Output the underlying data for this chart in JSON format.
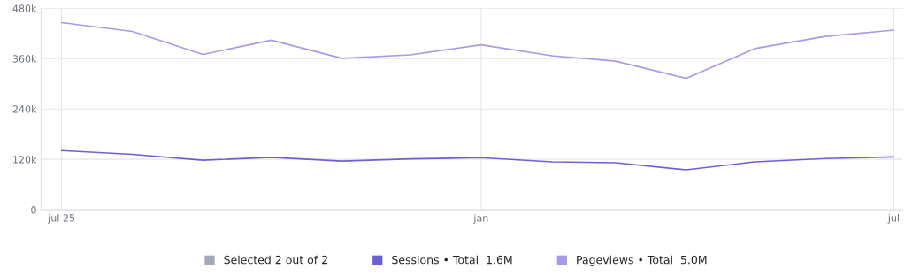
{
  "chart_data": {
    "type": "line",
    "x": [
      "2025-07",
      "2025-08",
      "2025-09",
      "2025-10",
      "2025-11",
      "2025-12",
      "2026-01",
      "2026-02",
      "2026-03",
      "2026-04",
      "2026-05",
      "2026-06",
      "2026-07"
    ],
    "series": [
      {
        "name": "Sessions • Total  1.6M",
        "color": "#6c60d6",
        "values": [
          141,
          132,
          118,
          125,
          116,
          121,
          124,
          114,
          112,
          95,
          114,
          122,
          126
        ]
      },
      {
        "name": "Pageviews • Total  5.0M",
        "color": "#a49ce6",
        "values": [
          446,
          425,
          370,
          404,
          361,
          369,
          393,
          367,
          354,
          313,
          384,
          413,
          428
        ]
      }
    ],
    "xlim": [
      "2025-06-22",
      "2026-07-05"
    ],
    "xticks": [
      {
        "value": "2025-07",
        "label": "jul 25"
      },
      {
        "value": "2026-01",
        "label": "jan"
      },
      {
        "value": "2026-07",
        "label": "jul"
      }
    ],
    "ylim": [
      0,
      480
    ],
    "yticks": [
      {
        "value": 0,
        "label": "0"
      },
      {
        "value": 120,
        "label": "120k"
      },
      {
        "value": 240,
        "label": "240k"
      },
      {
        "value": 360,
        "label": "360k"
      },
      {
        "value": 480,
        "label": "480k"
      }
    ],
    "annotations": [
      "Selected 2 out of 2"
    ],
    "grid": true,
    "legend": "bottom",
    "marker": "none",
    "line_style": "solid"
  }
}
